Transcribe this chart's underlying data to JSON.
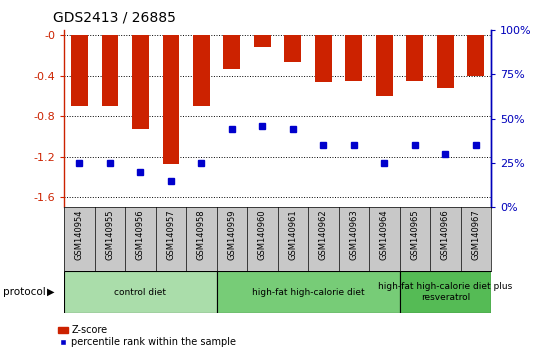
{
  "title": "GDS2413 / 26885",
  "samples": [
    "GSM140954",
    "GSM140955",
    "GSM140956",
    "GSM140957",
    "GSM140958",
    "GSM140959",
    "GSM140960",
    "GSM140961",
    "GSM140962",
    "GSM140963",
    "GSM140964",
    "GSM140965",
    "GSM140966",
    "GSM140967"
  ],
  "z_scores": [
    -0.7,
    -0.7,
    -0.93,
    -1.27,
    -0.7,
    -0.33,
    -0.12,
    -0.27,
    -0.46,
    -0.45,
    -0.6,
    -0.45,
    -0.52,
    -0.4
  ],
  "percentile_ranks": [
    25,
    25,
    20,
    15,
    25,
    44,
    46,
    44,
    35,
    35,
    25,
    35,
    30,
    35
  ],
  "ylim_min": -1.7,
  "ylim_max": 0.05,
  "yticks": [
    0.0,
    -0.4,
    -0.8,
    -1.2,
    -1.6
  ],
  "ytick_labels": [
    "-0",
    "-0.4",
    "-0.8",
    "-1.2",
    "-1.6"
  ],
  "right_yticks_pct": [
    100,
    75,
    50,
    25,
    0
  ],
  "bar_color": "#CC2200",
  "percentile_color": "#0000CC",
  "bg_color": "#FFFFFF",
  "gray_bg": "#C8C8C8",
  "protocol_groups": [
    {
      "label": "control diet",
      "start": 0,
      "end": 5,
      "color": "#AADDAA"
    },
    {
      "label": "high-fat high-calorie diet",
      "start": 5,
      "end": 11,
      "color": "#77CC77"
    },
    {
      "label": "high-fat high-calorie diet plus\nresveratrol",
      "start": 11,
      "end": 14,
      "color": "#55BB55"
    }
  ],
  "protocol_label": "protocol",
  "legend_zscore": "Z-score",
  "legend_percentile": "percentile rank within the sample",
  "left_axis_color": "#CC2200",
  "right_axis_color": "#0000BB",
  "title_fontsize": 10,
  "bar_width": 0.55
}
